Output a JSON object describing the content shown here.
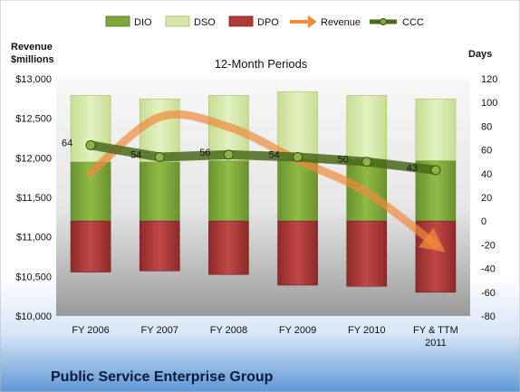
{
  "chart_data": {
    "type": "bar",
    "title": "12-Month Periods",
    "company": "Public Service Enterprise Group",
    "left_axis_label_line1": "Revenue",
    "left_axis_label_line2": "$millions",
    "right_axis_label": "Days",
    "categories": [
      {
        "line1": "FY 2006",
        "line2": ""
      },
      {
        "line1": "FY 2007",
        "line2": ""
      },
      {
        "line1": "FY 2008",
        "line2": ""
      },
      {
        "line1": "FY 2009",
        "line2": ""
      },
      {
        "line1": "FY 2010",
        "line2": ""
      },
      {
        "line1": "FY & TTM",
        "line2": "2011"
      }
    ],
    "left_axis": {
      "min": 10000,
      "max": 13000,
      "ticks": [
        {
          "value": 10000,
          "label": "$10,000"
        },
        {
          "value": 10500,
          "label": "$10,500"
        },
        {
          "value": 11000,
          "label": "$11,000"
        },
        {
          "value": 11500,
          "label": "$11,500"
        },
        {
          "value": 12000,
          "label": "$12,000"
        },
        {
          "value": 12500,
          "label": "$12,500"
        },
        {
          "value": 13000,
          "label": "$13,000"
        }
      ]
    },
    "right_axis": {
      "min": -80,
      "max": 120,
      "ticks": [
        {
          "value": -80,
          "label": "-80"
        },
        {
          "value": -60,
          "label": "-60"
        },
        {
          "value": -40,
          "label": "-40"
        },
        {
          "value": -20,
          "label": "-20"
        },
        {
          "value": 0,
          "label": "0"
        },
        {
          "value": 20,
          "label": "20"
        },
        {
          "value": 40,
          "label": "40"
        },
        {
          "value": 60,
          "label": "60"
        },
        {
          "value": 80,
          "label": "80"
        },
        {
          "value": 100,
          "label": "100"
        },
        {
          "value": 120,
          "label": "120"
        }
      ]
    },
    "series": [
      {
        "name": "DIO",
        "axis": "right",
        "kind": "stacked-bar-positive",
        "color": "#7ea83a",
        "values": [
          50,
          50,
          51,
          52,
          52,
          51
        ]
      },
      {
        "name": "DSO",
        "axis": "right",
        "kind": "stacked-bar-positive",
        "color": "#d5e8a8",
        "values": [
          56,
          53,
          55,
          57,
          54,
          52
        ]
      },
      {
        "name": "DPO",
        "axis": "right",
        "kind": "bar-negative",
        "color": "#b03a3a",
        "values": [
          -43,
          -42,
          -45,
          -54,
          -55,
          -60
        ]
      },
      {
        "name": "Revenue",
        "axis": "left",
        "kind": "arrow-line",
        "color": "#f08a3c",
        "values": [
          11805,
          12515,
          12390,
          11970,
          11565,
          10900
        ]
      },
      {
        "name": "CCC",
        "axis": "right",
        "kind": "line-markers",
        "color": "#4a6a1a",
        "values": [
          64,
          54,
          56,
          54,
          50,
          43
        ],
        "labels": [
          "64",
          "54",
          "56",
          "54",
          "50",
          "43"
        ]
      }
    ],
    "legend_position": "top",
    "grid": false
  }
}
